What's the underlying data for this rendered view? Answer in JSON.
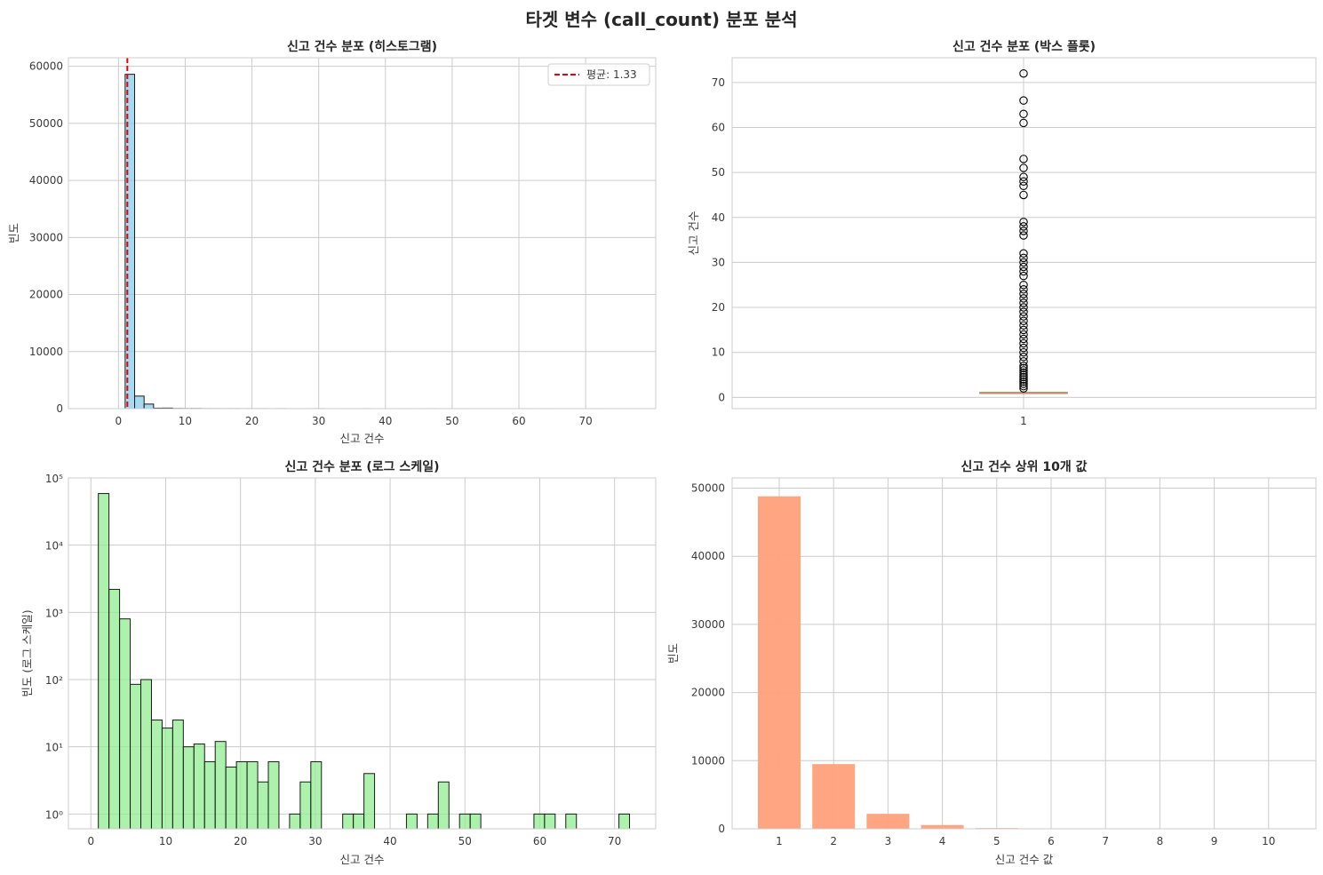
{
  "suptitle": "타겟 변수 (call_count) 분포 분석",
  "chart_data": [
    {
      "type": "bar",
      "subtype": "histogram",
      "title": "신고 건수 분포 (히스토그램)",
      "xlabel": "신고 건수",
      "ylabel": "빈도",
      "xlim": [
        -7.5,
        80.5
      ],
      "ylim": [
        0,
        61500
      ],
      "xticks": [
        0,
        10,
        20,
        30,
        40,
        50,
        60,
        70
      ],
      "yticks": [
        0,
        10000,
        20000,
        30000,
        40000,
        50000,
        60000
      ],
      "bin_start": 1,
      "bin_width": 1.42,
      "counts": [
        58600,
        2200,
        800,
        90,
        100,
        30,
        20,
        25,
        10,
        10,
        6,
        10,
        5,
        6,
        6,
        3,
        6,
        0,
        1,
        3,
        6,
        0,
        0,
        1,
        1,
        4,
        0,
        0,
        0,
        1,
        0,
        1,
        3,
        0,
        1,
        1,
        0,
        0,
        0,
        0,
        0,
        1,
        1,
        0,
        1,
        0,
        0,
        0,
        0,
        1
      ],
      "fill_color": "#87ceeb",
      "mean_line": {
        "value": 1.33,
        "color": "#e8000b",
        "label": "평균: 1.33"
      },
      "legend": "top-right",
      "grid": true
    },
    {
      "type": "box",
      "title": "신고 건수 분포 (박스 플롯)",
      "xlabel": "",
      "ylabel": "신고 건수",
      "xticks": [
        "1"
      ],
      "ylim": [
        -2.5,
        75.5
      ],
      "yticks": [
        0,
        10,
        20,
        30,
        40,
        50,
        60,
        70
      ],
      "median": 1,
      "q1": 1,
      "q3": 1,
      "whisker_low": 1,
      "whisker_high": 1,
      "outliers": [
        2,
        2.5,
        3,
        3.5,
        4,
        4.5,
        5,
        5.5,
        6,
        6.5,
        7,
        8,
        9,
        10,
        11,
        12,
        13,
        14,
        15,
        16,
        17,
        18,
        19,
        20,
        21,
        22,
        23,
        24,
        25,
        27,
        28,
        29,
        30,
        31,
        32,
        36,
        37,
        38,
        39,
        45,
        47,
        48,
        49,
        51,
        53,
        61,
        63,
        66,
        72
      ],
      "median_color": "#dd8452",
      "grid": true
    },
    {
      "type": "bar",
      "subtype": "histogram",
      "scale": "log",
      "title": "신고 건수 분포 (로그 스케일)",
      "xlabel": "신고 건수",
      "ylabel": "빈도 (로그 스케일)",
      "xlim": [
        -3,
        75.5
      ],
      "ylim_log10": [
        -0.22,
        5
      ],
      "xticks": [
        0,
        10,
        20,
        30,
        40,
        50,
        60,
        70
      ],
      "yticks": [
        "10⁰",
        "10¹",
        "10²",
        "10³",
        "10⁴",
        "10⁵"
      ],
      "bin_start": 1,
      "bin_width": 1.42,
      "counts": [
        58600,
        2200,
        800,
        85,
        100,
        25,
        19,
        25,
        10,
        11,
        6,
        12,
        5,
        6,
        6,
        3,
        6,
        0,
        1,
        3,
        6,
        0,
        0,
        1,
        1,
        4,
        0,
        0,
        0,
        1,
        0,
        1,
        3,
        0,
        1,
        1,
        0,
        0,
        0,
        0,
        0,
        1,
        1,
        0,
        1,
        0,
        0,
        0,
        0,
        1
      ],
      "fill_color": "#90ee90",
      "grid": true
    },
    {
      "type": "bar",
      "title": "신고 건수 상위 10개 값",
      "xlabel": "신고 건수 값",
      "ylabel": "빈도",
      "categories": [
        "1",
        "2",
        "3",
        "4",
        "5",
        "6",
        "7",
        "8",
        "9",
        "10"
      ],
      "values": [
        48800,
        9500,
        2200,
        550,
        110,
        60,
        30,
        15,
        10,
        5
      ],
      "ylim": [
        0,
        51500
      ],
      "yticks": [
        0,
        10000,
        20000,
        30000,
        40000,
        50000
      ],
      "fill_color": "#ffa07a",
      "grid": true
    }
  ]
}
